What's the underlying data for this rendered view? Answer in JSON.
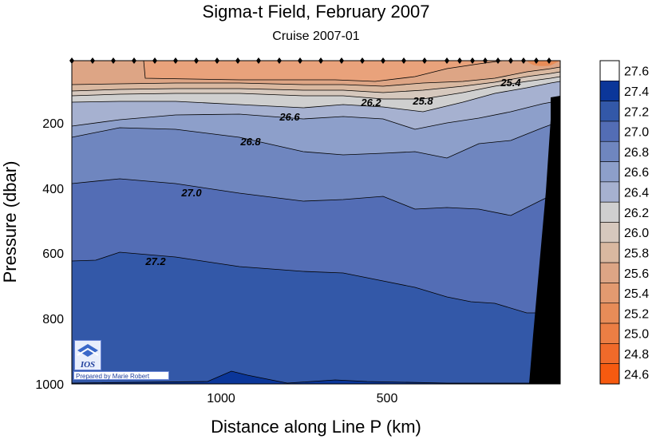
{
  "title": "Sigma-t Field,  February 2007",
  "subtitle": "Cruise 2007-01",
  "logo": {
    "name": "IOS",
    "credit": "Prepared by Marie Robert"
  },
  "chart_data": {
    "type": "heatmap",
    "xlabel": "Distance along Line P  (km)",
    "ylabel": "Pressure  (dbar)",
    "x_ticks": [
      "1000",
      "500"
    ],
    "x_tick_values": [
      1000,
      500
    ],
    "x_reversed": true,
    "x_range_km": [
      1440,
      0
    ],
    "y_ticks": [
      "200",
      "400",
      "600",
      "800",
      "1000"
    ],
    "y_tick_values": [
      200,
      400,
      600,
      800,
      1000
    ],
    "y_range_dbar": [
      0,
      1000
    ],
    "y_reversed": true,
    "contour_labels": [
      "25.4",
      "25.8",
      "26.2",
      "26.6",
      "26.8",
      "27.0",
      "27.2"
    ],
    "colorbar": {
      "levels": [
        27.6,
        27.4,
        27.2,
        27.0,
        26.8,
        26.6,
        26.4,
        26.2,
        26.0,
        25.8,
        25.6,
        25.4,
        25.2,
        25.0,
        24.8,
        24.6
      ],
      "labels": [
        "27.6",
        "27.4",
        "27.2",
        "27.0",
        "26.8",
        "26.6",
        "26.4",
        "26.2",
        "26.0",
        "25.8",
        "25.6",
        "25.4",
        "25.2",
        "25.0",
        "24.8",
        "24.6"
      ],
      "colors": [
        "#ffffff",
        "#0b3699",
        "#3358a8",
        "#536db5",
        "#6f86bf",
        "#8d9fca",
        "#a6b1d0",
        "#cfcfcf",
        "#d6c8bd",
        "#d9b8a0",
        "#dda585",
        "#e39a70",
        "#e88c58",
        "#ec7e44",
        "#f06a2a",
        "#f65a10"
      ]
    },
    "station_count": 27,
    "continental_shelf_color": "#000000"
  }
}
